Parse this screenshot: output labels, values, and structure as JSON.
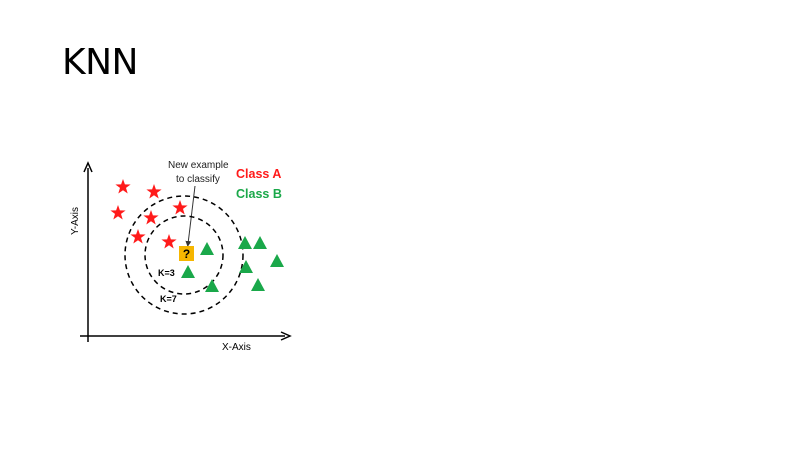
{
  "slide": {
    "title": "KNN"
  },
  "diagram": {
    "x_axis_label": "X-Axis",
    "y_axis_label": "Y-Axis",
    "legend": [
      {
        "label": "Class A",
        "color": "#ff1a1a"
      },
      {
        "label": "Class B",
        "color": "#1aa84a"
      }
    ],
    "new_example": {
      "label_line1": "New example",
      "label_line2": "to classify",
      "marker": "?",
      "marker_color": "#f6b600"
    },
    "circles": [
      {
        "label": "K=3"
      },
      {
        "label": "K=7"
      }
    ],
    "class_a_shape": "star",
    "class_b_shape": "triangle"
  }
}
